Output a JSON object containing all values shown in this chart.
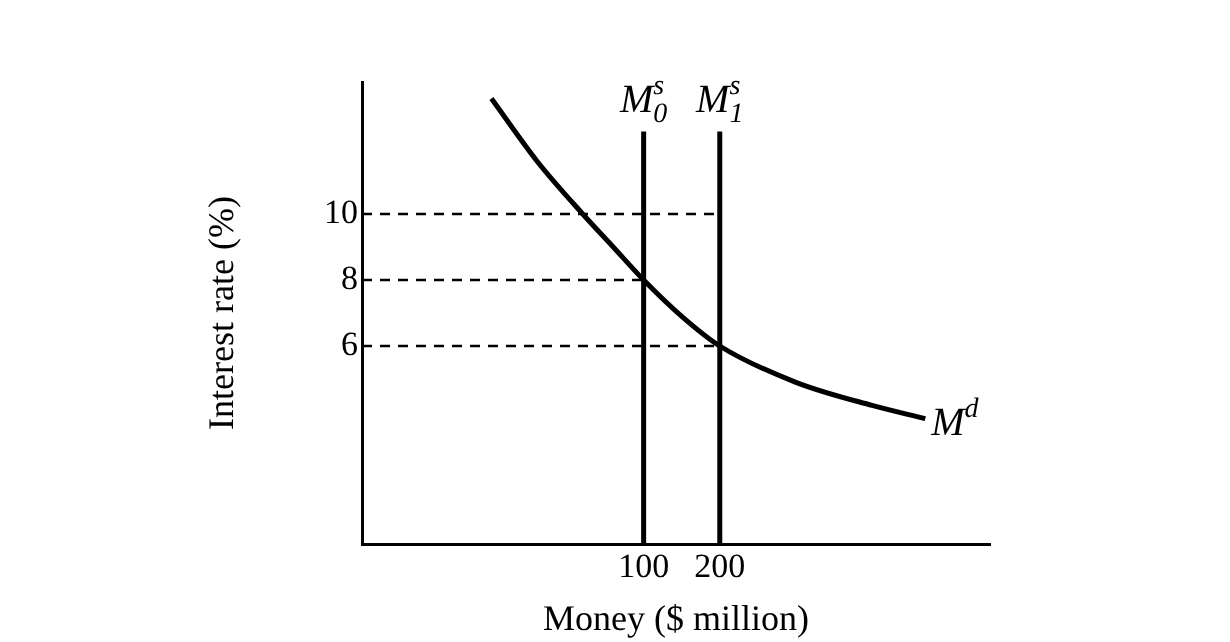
{
  "chart_data": {
    "type": "line",
    "xlabel": "Money ($ million)",
    "ylabel": "Interest rate (%)",
    "xlim": [
      -270,
      555
    ],
    "ylim": [
      0,
      14
    ],
    "xticks": [
      100,
      200
    ],
    "yticks": [
      6,
      8,
      10
    ],
    "grid": false,
    "legend": false,
    "marker": "none",
    "line_style": "solid",
    "series": [
      {
        "name": "M$^{d}$",
        "color": "#000000",
        "x": [
          -100,
          -40,
          20,
          60,
          100,
          150,
          200,
          300,
          400,
          470
        ],
        "values": [
          13.5,
          11.6,
          10,
          9,
          8,
          6.9,
          6,
          4.9,
          4.2,
          3.8
        ]
      },
      {
        "name": "M$^{s}$$_{0}$",
        "color": "#000000",
        "x": [
          100,
          100
        ],
        "values": [
          0,
          12.5
        ]
      },
      {
        "name": "M$^{s}$$_{1}$",
        "color": "#000000",
        "x": [
          200,
          200
        ],
        "values": [
          0,
          12.5
        ]
      },
      {
        "color": "#000000",
        "line_style": "dashed",
        "x": [
          -270,
          200
        ],
        "values": [
          10,
          10
        ]
      },
      {
        "color": "#000000",
        "line_style": "dashed",
        "x": [
          -270,
          100
        ],
        "values": [
          8,
          8
        ]
      },
      {
        "color": "#000000",
        "line_style": "dashed",
        "x": [
          -270,
          200
        ],
        "values": [
          6,
          6
        ]
      }
    ]
  }
}
